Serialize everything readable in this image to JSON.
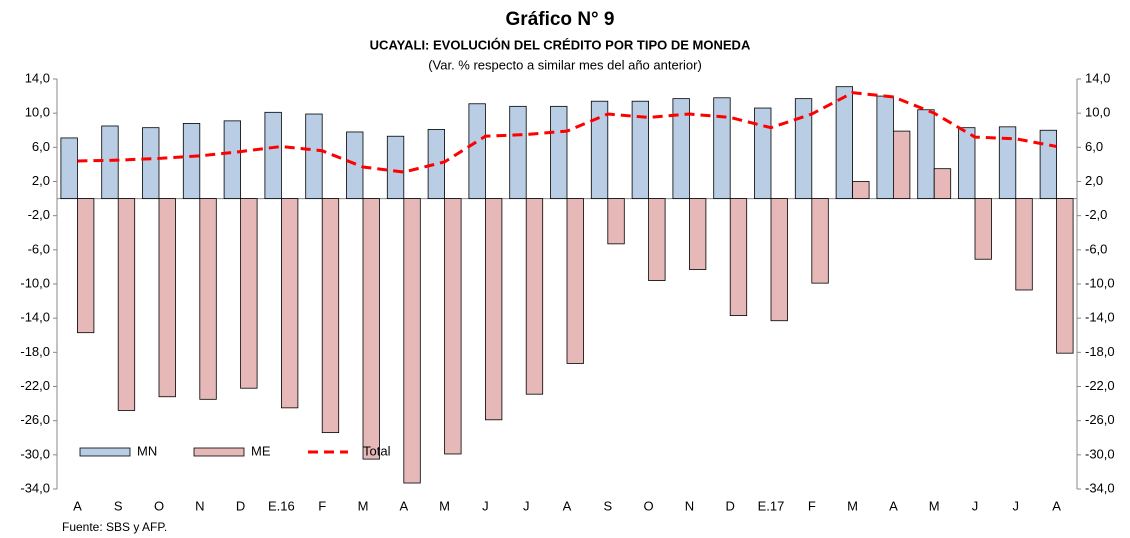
{
  "chart_data": {
    "type": "bar",
    "title": "Gráfico N° 9",
    "subtitle": "UCAYALI: EVOLUCIÓN DEL CRÉDITO POR TIPO DE MONEDA",
    "note": "(Var. % respecto a similar mes del año anterior)",
    "source": "Fuente: SBS y AFP.",
    "categories": [
      "A",
      "S",
      "O",
      "N",
      "D",
      "E.16",
      "F",
      "M",
      "A",
      "M",
      "J",
      "J",
      "A",
      "S",
      "O",
      "N",
      "D",
      "E.17",
      "F",
      "M",
      "A",
      "M",
      "J",
      "J",
      "A"
    ],
    "series": [
      {
        "name": "MN",
        "type": "bar",
        "color": "#b9cde5",
        "values": [
          7.1,
          8.5,
          8.3,
          8.8,
          9.1,
          10.1,
          9.9,
          7.8,
          7.3,
          8.1,
          11.1,
          10.8,
          10.8,
          11.4,
          11.4,
          11.7,
          11.8,
          10.6,
          11.7,
          13.1,
          12.0,
          10.4,
          8.3,
          8.4,
          8.0
        ]
      },
      {
        "name": "ME",
        "type": "bar",
        "color": "#e6b9b8",
        "values": [
          -15.7,
          -24.8,
          -23.2,
          -23.5,
          -22.2,
          -24.5,
          -27.4,
          -30.5,
          -33.3,
          -29.9,
          -25.9,
          -22.9,
          -19.3,
          -5.3,
          -9.6,
          -8.3,
          -13.7,
          -14.3,
          -9.9,
          2.0,
          7.9,
          3.5,
          -7.1,
          -10.7,
          -18.1
        ]
      },
      {
        "name": "Total",
        "type": "line",
        "color": "#ff0000",
        "values": [
          4.4,
          4.5,
          4.7,
          5.0,
          5.5,
          6.1,
          5.6,
          3.7,
          3.1,
          4.3,
          7.3,
          7.5,
          7.9,
          9.9,
          9.5,
          9.9,
          9.5,
          8.3,
          9.9,
          12.4,
          11.9,
          10.0,
          7.2,
          7.0,
          6.1
        ]
      }
    ],
    "ylim": [
      -34,
      14
    ],
    "yticks": [
      {
        "value": 14,
        "label": "14,0"
      },
      {
        "value": 10,
        "label": "10,0"
      },
      {
        "value": 6,
        "label": "6,0"
      },
      {
        "value": 2,
        "label": "2,0"
      },
      {
        "value": -2,
        "label": "-2,0"
      },
      {
        "value": -6,
        "label": "-6,0"
      },
      {
        "value": -10,
        "label": "-10,0"
      },
      {
        "value": -14,
        "label": "-14,0"
      },
      {
        "value": -18,
        "label": "-18,0"
      },
      {
        "value": -22,
        "label": "-22,0"
      },
      {
        "value": -26,
        "label": "-26,0"
      },
      {
        "value": -30,
        "label": "-30,0"
      },
      {
        "value": -34,
        "label": "-34,0"
      }
    ],
    "y2lim": [
      -34,
      14
    ],
    "y2ticks": [
      {
        "value": 14,
        "label": "14,0"
      },
      {
        "value": 10,
        "label": "10,0"
      },
      {
        "value": 6,
        "label": "6,0"
      },
      {
        "value": 2,
        "label": "2,0"
      },
      {
        "value": -2,
        "label": "-2,0"
      },
      {
        "value": -6,
        "label": "-6,0"
      },
      {
        "value": -10,
        "label": "-10,0"
      },
      {
        "value": -14,
        "label": "-14,0"
      },
      {
        "value": -18,
        "label": "-18,0"
      },
      {
        "value": -22,
        "label": "-22,0"
      },
      {
        "value": -26,
        "label": "-26,0"
      },
      {
        "value": -30,
        "label": "-30,0"
      },
      {
        "value": -34,
        "label": "-34,0"
      }
    ],
    "grid": false,
    "legend": "lower left"
  }
}
